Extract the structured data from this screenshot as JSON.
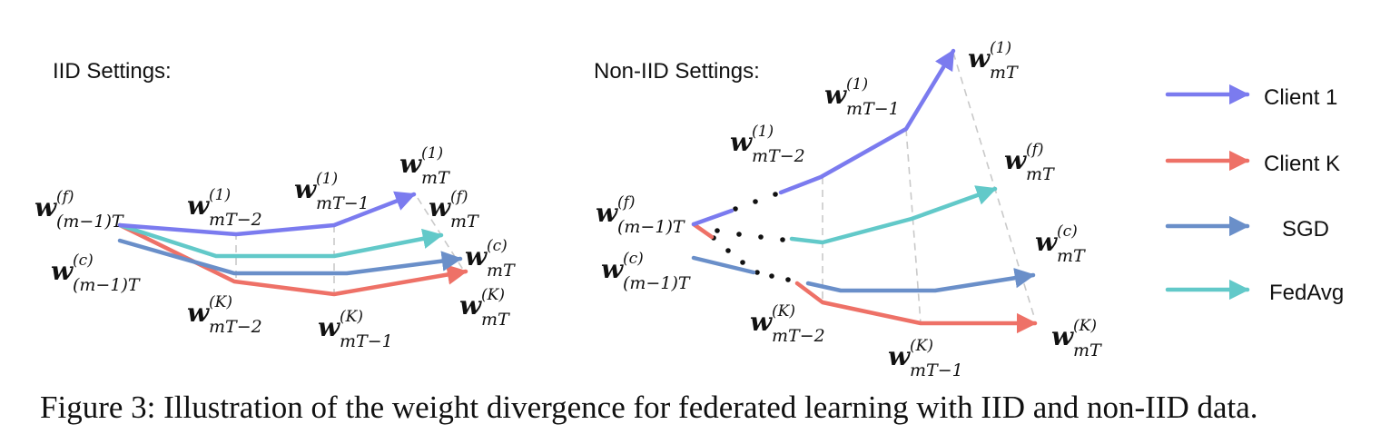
{
  "colors": {
    "client1": "#7b7bef",
    "clientK": "#ee7167",
    "sgd": "#6a8fc9",
    "fedavg": "#62c9c9"
  },
  "iid": {
    "title": "IID Settings:",
    "labels": {
      "w_f_start": [
        "(f)",
        "(m−1)T"
      ],
      "w_c_start": [
        "(c)",
        "(m−1)T"
      ],
      "w1_mT2": [
        "(1)",
        "mT−2"
      ],
      "wK_mT2": [
        "(K)",
        "mT−2"
      ],
      "w1_mT1": [
        "(1)",
        "mT−1"
      ],
      "wK_mT1": [
        "(K)",
        "mT−1"
      ],
      "w1_mT": [
        "(1)",
        "mT"
      ],
      "wf_mT": [
        "(f)",
        "mT"
      ],
      "wc_mT": [
        "(c)",
        "mT"
      ],
      "wK_mT": [
        "(K)",
        "mT"
      ]
    }
  },
  "noniid": {
    "title": "Non-IID Settings:",
    "labels": {
      "w_f_start": [
        "(f)",
        "(m−1)T"
      ],
      "w_c_start": [
        "(c)",
        "(m−1)T"
      ],
      "w1_mT2": [
        "(1)",
        "mT−2"
      ],
      "w1_mT1": [
        "(1)",
        "mT−1"
      ],
      "w1_mT": [
        "(1)",
        "mT"
      ],
      "wf_mT": [
        "(f)",
        "mT"
      ],
      "wc_mT": [
        "(c)",
        "mT"
      ],
      "wK_mT2": [
        "(K)",
        "mT−2"
      ],
      "wK_mT1": [
        "(K)",
        "mT−1"
      ],
      "wK_mT": [
        "(K)",
        "mT"
      ]
    }
  },
  "legend": [
    {
      "key": "client1",
      "label": "Client 1"
    },
    {
      "key": "clientK",
      "label": "Client K"
    },
    {
      "key": "sgd",
      "label": "SGD"
    },
    {
      "key": "fedavg",
      "label": "FedAvg"
    }
  ],
  "caption": "Figure 3: Illustration of the weight divergence for federated learning with IID and non-IID data.",
  "math_symbol": "w"
}
